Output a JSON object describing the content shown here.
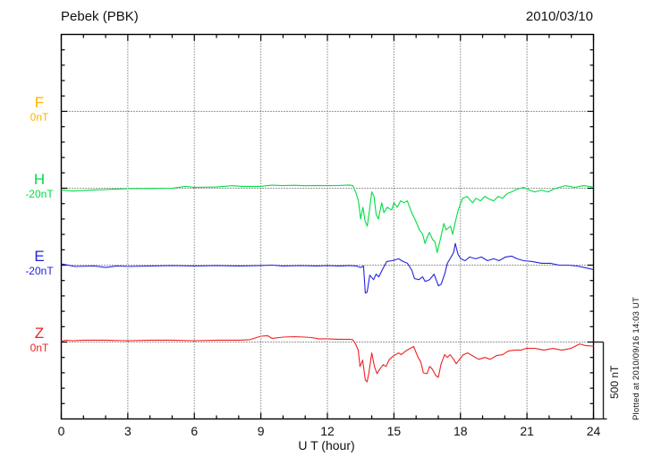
{
  "header": {
    "title": "Pebek (PBK)",
    "date": "2010/03/10"
  },
  "channels": [
    {
      "id": "F",
      "label": "F",
      "ref_label": "0nT",
      "color": "#FFB300"
    },
    {
      "id": "H",
      "label": "H",
      "ref_label": "-20nT",
      "color": "#00DD44"
    },
    {
      "id": "E",
      "label": "E",
      "ref_label": "-20nT",
      "color": "#2222DD"
    },
    {
      "id": "Z",
      "label": "Z",
      "ref_label": "0nT",
      "color": "#EE2222"
    }
  ],
  "x_axis": {
    "label": "U T (hour)",
    "ticks": [
      "0",
      "3",
      "6",
      "9",
      "12",
      "15",
      "18",
      "21",
      "24"
    ]
  },
  "scale_bar": {
    "label": "500 nT",
    "span_nt": 500
  },
  "footer_note": "Plotted at 2010/09/16 14:03 UT",
  "chart_data": {
    "type": "line",
    "title": "Pebek (PBK)",
    "date": "2010/03/10",
    "xlabel": "U T (hour)",
    "x_range": [
      0,
      24
    ],
    "x_tick_major_hours": 3,
    "x_tick_minor_hours": 1,
    "y_division_nt": 500,
    "y_minor_tick_nt": 100,
    "grid": "vertical dotted lines every 3 h; dotted horizontal reference line per channel",
    "legend_position": "channel letters with reference values along left margin",
    "series": [
      {
        "name": "F",
        "color": "#FFB300",
        "reference_nt": 0,
        "reference_label": "0nT",
        "note": "no trace visible (data gap)",
        "points": []
      },
      {
        "name": "H",
        "color": "#00DD44",
        "reference_nt": -20,
        "reference_label": "-20nT",
        "points": [
          [
            0,
            -32
          ],
          [
            0.5,
            -38
          ],
          [
            1,
            -35
          ],
          [
            1.5,
            -31
          ],
          [
            2,
            -29
          ],
          [
            3,
            -23
          ],
          [
            4,
            -22
          ],
          [
            5,
            -20
          ],
          [
            5.6,
            -8
          ],
          [
            6,
            -14
          ],
          [
            7,
            -12
          ],
          [
            7.7,
            -4
          ],
          [
            8.2,
            -8
          ],
          [
            9,
            -8
          ],
          [
            9.5,
            0
          ],
          [
            10,
            -3
          ],
          [
            10.5,
            -1
          ],
          [
            11,
            -4
          ],
          [
            11.5,
            -2
          ],
          [
            12,
            -3
          ],
          [
            12.5,
            -2
          ],
          [
            13,
            1
          ],
          [
            13.15,
            -3
          ],
          [
            13.3,
            -55
          ],
          [
            13.4,
            -102
          ],
          [
            13.5,
            -220
          ],
          [
            13.6,
            -144
          ],
          [
            13.7,
            -232
          ],
          [
            13.8,
            -267
          ],
          [
            13.9,
            -161
          ],
          [
            14,
            -44
          ],
          [
            14.1,
            -73
          ],
          [
            14.2,
            -190
          ],
          [
            14.3,
            -220
          ],
          [
            14.45,
            -114
          ],
          [
            14.55,
            -179
          ],
          [
            14.7,
            -144
          ],
          [
            14.9,
            -161
          ],
          [
            15,
            -114
          ],
          [
            15.15,
            -144
          ],
          [
            15.3,
            -102
          ],
          [
            15.45,
            -114
          ],
          [
            15.6,
            -102
          ],
          [
            15.8,
            -179
          ],
          [
            16,
            -238
          ],
          [
            16.15,
            -291
          ],
          [
            16.3,
            -320
          ],
          [
            16.4,
            -379
          ],
          [
            16.5,
            -338
          ],
          [
            16.6,
            -308
          ],
          [
            16.75,
            -355
          ],
          [
            16.85,
            -367
          ],
          [
            16.95,
            -438
          ],
          [
            17.1,
            -349
          ],
          [
            17.25,
            -249
          ],
          [
            17.35,
            -291
          ],
          [
            17.45,
            -279
          ],
          [
            17.55,
            -267
          ],
          [
            17.65,
            -320
          ],
          [
            17.75,
            -249
          ],
          [
            17.9,
            -161
          ],
          [
            18,
            -120
          ],
          [
            18.1,
            -85
          ],
          [
            18.3,
            -73
          ],
          [
            18.4,
            -91
          ],
          [
            18.55,
            -114
          ],
          [
            18.7,
            -85
          ],
          [
            18.9,
            -102
          ],
          [
            19.1,
            -73
          ],
          [
            19.3,
            -91
          ],
          [
            19.5,
            -102
          ],
          [
            19.7,
            -73
          ],
          [
            19.9,
            -85
          ],
          [
            20.1,
            -55
          ],
          [
            20.3,
            -44
          ],
          [
            20.55,
            -26
          ],
          [
            20.85,
            -14
          ],
          [
            21.1,
            -32
          ],
          [
            21.35,
            -44
          ],
          [
            21.65,
            -32
          ],
          [
            21.95,
            -44
          ],
          [
            22.2,
            -26
          ],
          [
            22.45,
            -14
          ],
          [
            22.75,
            -3
          ],
          [
            23.15,
            -14
          ],
          [
            23.55,
            -3
          ],
          [
            24,
            -12
          ]
        ]
      },
      {
        "name": "E",
        "color": "#2222DD",
        "reference_nt": -20,
        "reference_label": "-20nT",
        "points": [
          [
            0,
            -11
          ],
          [
            0.3,
            -20
          ],
          [
            0.6,
            -29
          ],
          [
            1.5,
            -26
          ],
          [
            2,
            -35
          ],
          [
            2.5,
            -26
          ],
          [
            3,
            -29
          ],
          [
            4,
            -26
          ],
          [
            5,
            -23
          ],
          [
            6,
            -26
          ],
          [
            7,
            -23
          ],
          [
            8,
            -26
          ],
          [
            9,
            -23
          ],
          [
            9.5,
            -20
          ],
          [
            10,
            -26
          ],
          [
            10.8,
            -23
          ],
          [
            11.5,
            -26
          ],
          [
            12,
            -23
          ],
          [
            12.5,
            -26
          ],
          [
            13,
            -23
          ],
          [
            13.3,
            -26
          ],
          [
            13.5,
            -35
          ],
          [
            13.63,
            -26
          ],
          [
            13.71,
            -202
          ],
          [
            13.79,
            -196
          ],
          [
            13.91,
            -85
          ],
          [
            14.08,
            -114
          ],
          [
            14.2,
            -79
          ],
          [
            14.32,
            -96
          ],
          [
            14.48,
            -49
          ],
          [
            14.68,
            4
          ],
          [
            14.92,
            9
          ],
          [
            15.21,
            21
          ],
          [
            15.41,
            4
          ],
          [
            15.61,
            -8
          ],
          [
            15.81,
            -55
          ],
          [
            15.93,
            -108
          ],
          [
            16.13,
            -114
          ],
          [
            16.29,
            -96
          ],
          [
            16.41,
            -126
          ],
          [
            16.61,
            -114
          ],
          [
            16.81,
            -79
          ],
          [
            17.01,
            -155
          ],
          [
            17.13,
            -143
          ],
          [
            17.29,
            -79
          ],
          [
            17.41,
            -8
          ],
          [
            17.53,
            21
          ],
          [
            17.69,
            62
          ],
          [
            17.77,
            121
          ],
          [
            17.89,
            51
          ],
          [
            18.01,
            21
          ],
          [
            18.21,
            9
          ],
          [
            18.41,
            33
          ],
          [
            18.69,
            21
          ],
          [
            18.94,
            33
          ],
          [
            19.22,
            9
          ],
          [
            19.5,
            21
          ],
          [
            19.74,
            9
          ],
          [
            20.03,
            33
          ],
          [
            20.31,
            39
          ],
          [
            20.55,
            21
          ],
          [
            20.84,
            9
          ],
          [
            21.24,
            4
          ],
          [
            21.65,
            -8
          ],
          [
            22.05,
            -8
          ],
          [
            22.45,
            -20
          ],
          [
            22.86,
            -20
          ],
          [
            23.26,
            -26
          ],
          [
            23.66,
            -38
          ],
          [
            24,
            -49
          ]
        ]
      },
      {
        "name": "Z",
        "color": "#EE2222",
        "reference_nt": 0,
        "reference_label": "0nT",
        "points": [
          [
            0,
            6
          ],
          [
            0.2,
            12
          ],
          [
            0.5,
            9
          ],
          [
            1,
            12
          ],
          [
            2,
            12
          ],
          [
            3,
            9
          ],
          [
            4,
            12
          ],
          [
            5,
            12
          ],
          [
            6,
            9
          ],
          [
            7,
            12
          ],
          [
            8,
            12
          ],
          [
            8.5,
            15
          ],
          [
            9,
            38
          ],
          [
            9.3,
            41
          ],
          [
            9.5,
            24
          ],
          [
            10,
            32
          ],
          [
            10.5,
            35
          ],
          [
            11,
            32
          ],
          [
            11.3,
            29
          ],
          [
            11.6,
            21
          ],
          [
            12,
            21
          ],
          [
            12.5,
            18
          ],
          [
            13,
            18
          ],
          [
            13.14,
            15
          ],
          [
            13.27,
            -12
          ],
          [
            13.39,
            -53
          ],
          [
            13.47,
            -159
          ],
          [
            13.59,
            -118
          ],
          [
            13.71,
            -247
          ],
          [
            13.79,
            -259
          ],
          [
            13.87,
            -200
          ],
          [
            14,
            -71
          ],
          [
            14.12,
            -159
          ],
          [
            14.24,
            -206
          ],
          [
            14.36,
            -176
          ],
          [
            14.52,
            -147
          ],
          [
            14.64,
            -159
          ],
          [
            14.8,
            -112
          ],
          [
            15,
            -88
          ],
          [
            15.21,
            -71
          ],
          [
            15.33,
            -82
          ],
          [
            15.53,
            -59
          ],
          [
            15.73,
            -41
          ],
          [
            15.89,
            -29
          ],
          [
            16.09,
            -100
          ],
          [
            16.21,
            -129
          ],
          [
            16.33,
            -200
          ],
          [
            16.49,
            -206
          ],
          [
            16.61,
            -159
          ],
          [
            16.73,
            -176
          ],
          [
            16.89,
            -218
          ],
          [
            17,
            -229
          ],
          [
            17.13,
            -141
          ],
          [
            17.29,
            -82
          ],
          [
            17.41,
            -100
          ],
          [
            17.53,
            -82
          ],
          [
            17.69,
            -112
          ],
          [
            17.81,
            -141
          ],
          [
            17.93,
            -118
          ],
          [
            18.13,
            -82
          ],
          [
            18.33,
            -71
          ],
          [
            18.53,
            -88
          ],
          [
            18.82,
            -112
          ],
          [
            19.1,
            -100
          ],
          [
            19.34,
            -112
          ],
          [
            19.63,
            -88
          ],
          [
            19.91,
            -82
          ],
          [
            20.15,
            -59
          ],
          [
            20.43,
            -53
          ],
          [
            20.72,
            -53
          ],
          [
            20.96,
            -41
          ],
          [
            21.36,
            -41
          ],
          [
            21.77,
            -53
          ],
          [
            22.17,
            -41
          ],
          [
            22.57,
            -53
          ],
          [
            22.98,
            -41
          ],
          [
            23.38,
            -12
          ],
          [
            23.66,
            -24
          ],
          [
            24,
            -26
          ]
        ]
      }
    ]
  }
}
